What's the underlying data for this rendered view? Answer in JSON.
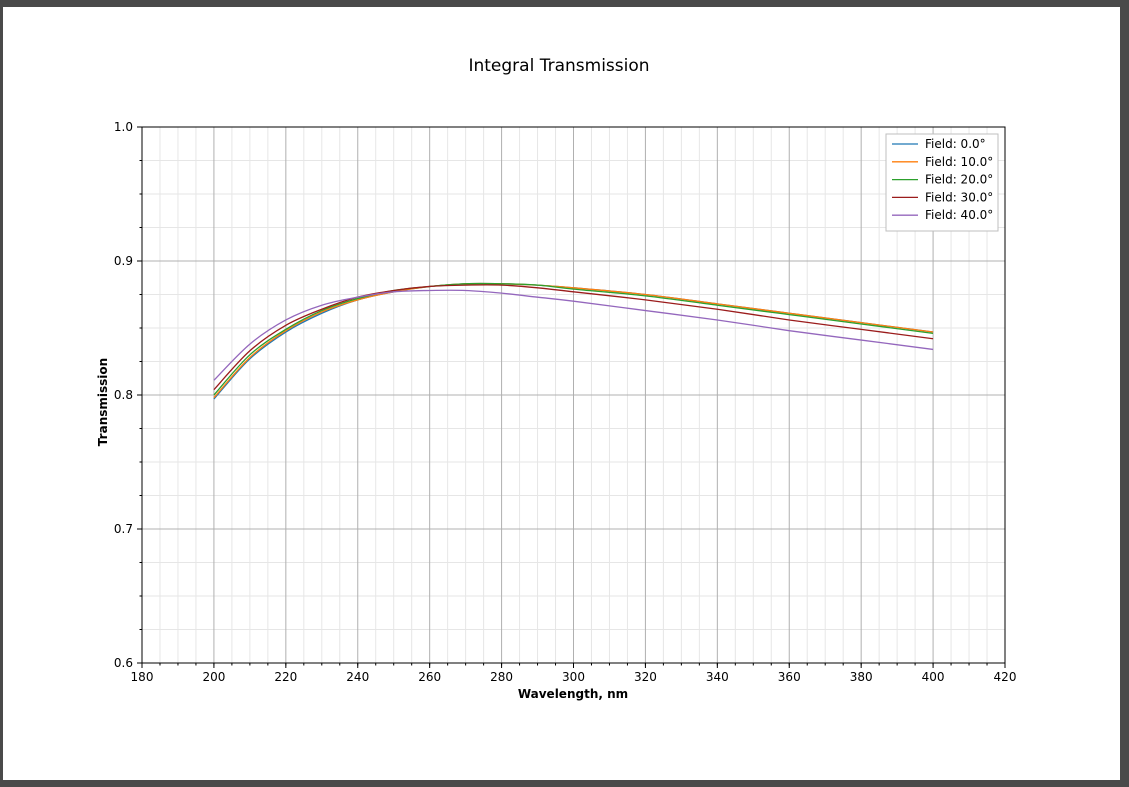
{
  "chart_data": {
    "type": "line",
    "title": "Integral Transmission",
    "xlabel": "Wavelength, nm",
    "ylabel": "Transmission",
    "xlim": [
      180,
      420
    ],
    "ylim": [
      0.6,
      1.0
    ],
    "xticks": [
      "180",
      "200",
      "220",
      "240",
      "260",
      "280",
      "300",
      "320",
      "340",
      "360",
      "380",
      "400",
      "420"
    ],
    "yticks": [
      "0.6",
      "0.7",
      "0.8",
      "0.9",
      "1.0"
    ],
    "grid": true,
    "legend_position": "top-right",
    "x": [
      200,
      210,
      220,
      230,
      240,
      250,
      260,
      270,
      280,
      290,
      300,
      320,
      340,
      360,
      380,
      400
    ],
    "series": [
      {
        "name": "Field: 0.0°",
        "color": "#1f77b4",
        "values": [
          0.797,
          0.827,
          0.847,
          0.861,
          0.871,
          0.877,
          0.881,
          0.883,
          0.883,
          0.882,
          0.88,
          0.875,
          0.868,
          0.861,
          0.854,
          0.847
        ]
      },
      {
        "name": "Field: 10.0°",
        "color": "#ff7f0e",
        "values": [
          0.798,
          0.828,
          0.848,
          0.862,
          0.871,
          0.877,
          0.881,
          0.883,
          0.883,
          0.882,
          0.88,
          0.875,
          0.868,
          0.861,
          0.854,
          0.847
        ]
      },
      {
        "name": "Field: 20.0°",
        "color": "#2ca02c",
        "values": [
          0.8,
          0.83,
          0.849,
          0.863,
          0.872,
          0.878,
          0.881,
          0.883,
          0.883,
          0.882,
          0.879,
          0.874,
          0.867,
          0.86,
          0.853,
          0.846
        ]
      },
      {
        "name": "Field: 30.0°",
        "color": "#9b1c1c",
        "values": [
          0.804,
          0.833,
          0.852,
          0.864,
          0.873,
          0.878,
          0.881,
          0.882,
          0.882,
          0.88,
          0.877,
          0.871,
          0.864,
          0.856,
          0.849,
          0.842
        ]
      },
      {
        "name": "Field: 40.0°",
        "color": "#9467bd",
        "values": [
          0.811,
          0.838,
          0.856,
          0.867,
          0.873,
          0.877,
          0.878,
          0.878,
          0.876,
          0.873,
          0.87,
          0.863,
          0.856,
          0.848,
          0.841,
          0.834
        ]
      }
    ]
  }
}
